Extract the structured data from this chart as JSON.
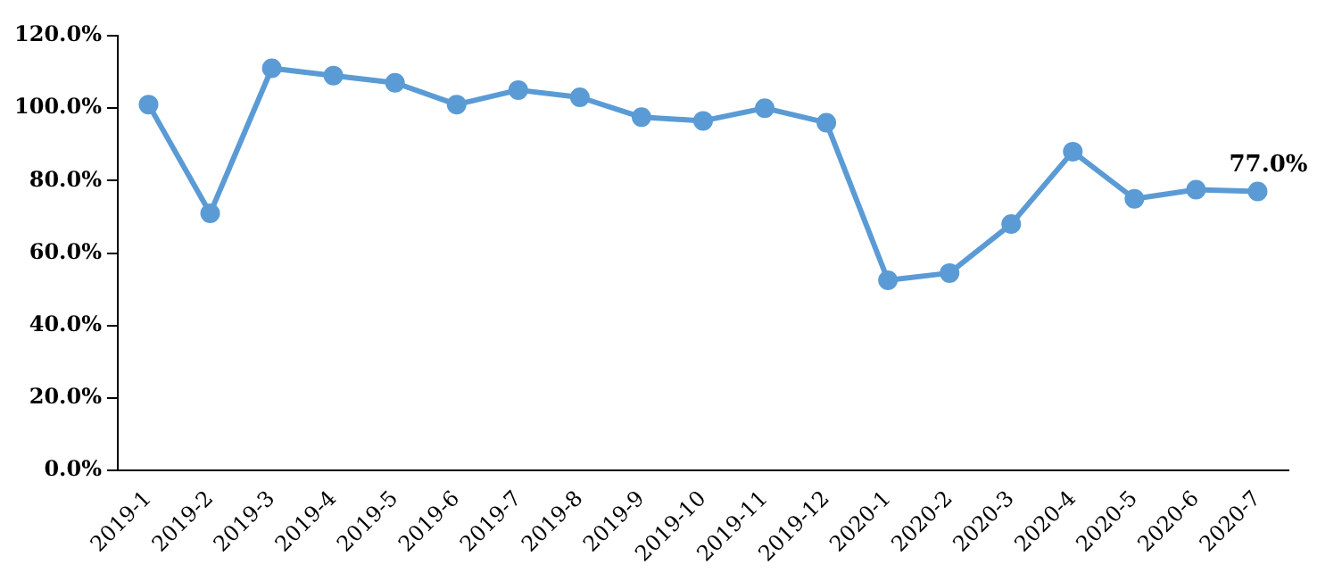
{
  "chart_data": {
    "type": "line",
    "categories": [
      "2019-1",
      "2019-2",
      "2019-3",
      "2019-4",
      "2019-5",
      "2019-6",
      "2019-7",
      "2019-8",
      "2019-9",
      "2019-10",
      "2019-11",
      "2019-12",
      "2020-1",
      "2020-2",
      "2020-3",
      "2020-4",
      "2020-5",
      "2020-6",
      "2020-7"
    ],
    "series": [
      {
        "color": "#5b9bd5",
        "values": [
          101,
          71,
          111,
          109,
          107,
          101,
          105,
          103,
          97.5,
          96.5,
          100,
          96,
          52.5,
          54.5,
          68,
          88,
          75,
          77.5,
          77
        ],
        "value_labels": [
          null,
          null,
          null,
          null,
          null,
          null,
          null,
          null,
          null,
          null,
          null,
          null,
          null,
          null,
          null,
          null,
          null,
          null,
          "77.0%"
        ]
      }
    ],
    "ylim": [
      0,
      120
    ],
    "yticks": [
      {
        "value": 0,
        "label": "0.0%"
      },
      {
        "value": 20,
        "label": "20.0%"
      },
      {
        "value": 40,
        "label": "40.0%"
      },
      {
        "value": 60,
        "label": "60.0%"
      },
      {
        "value": 80,
        "label": "80.0%"
      },
      {
        "value": 100,
        "label": "100.0%"
      },
      {
        "value": 120,
        "label": "120.0%"
      }
    ],
    "grid": false,
    "legend": false,
    "marker": "circle",
    "line_style": "solid"
  }
}
